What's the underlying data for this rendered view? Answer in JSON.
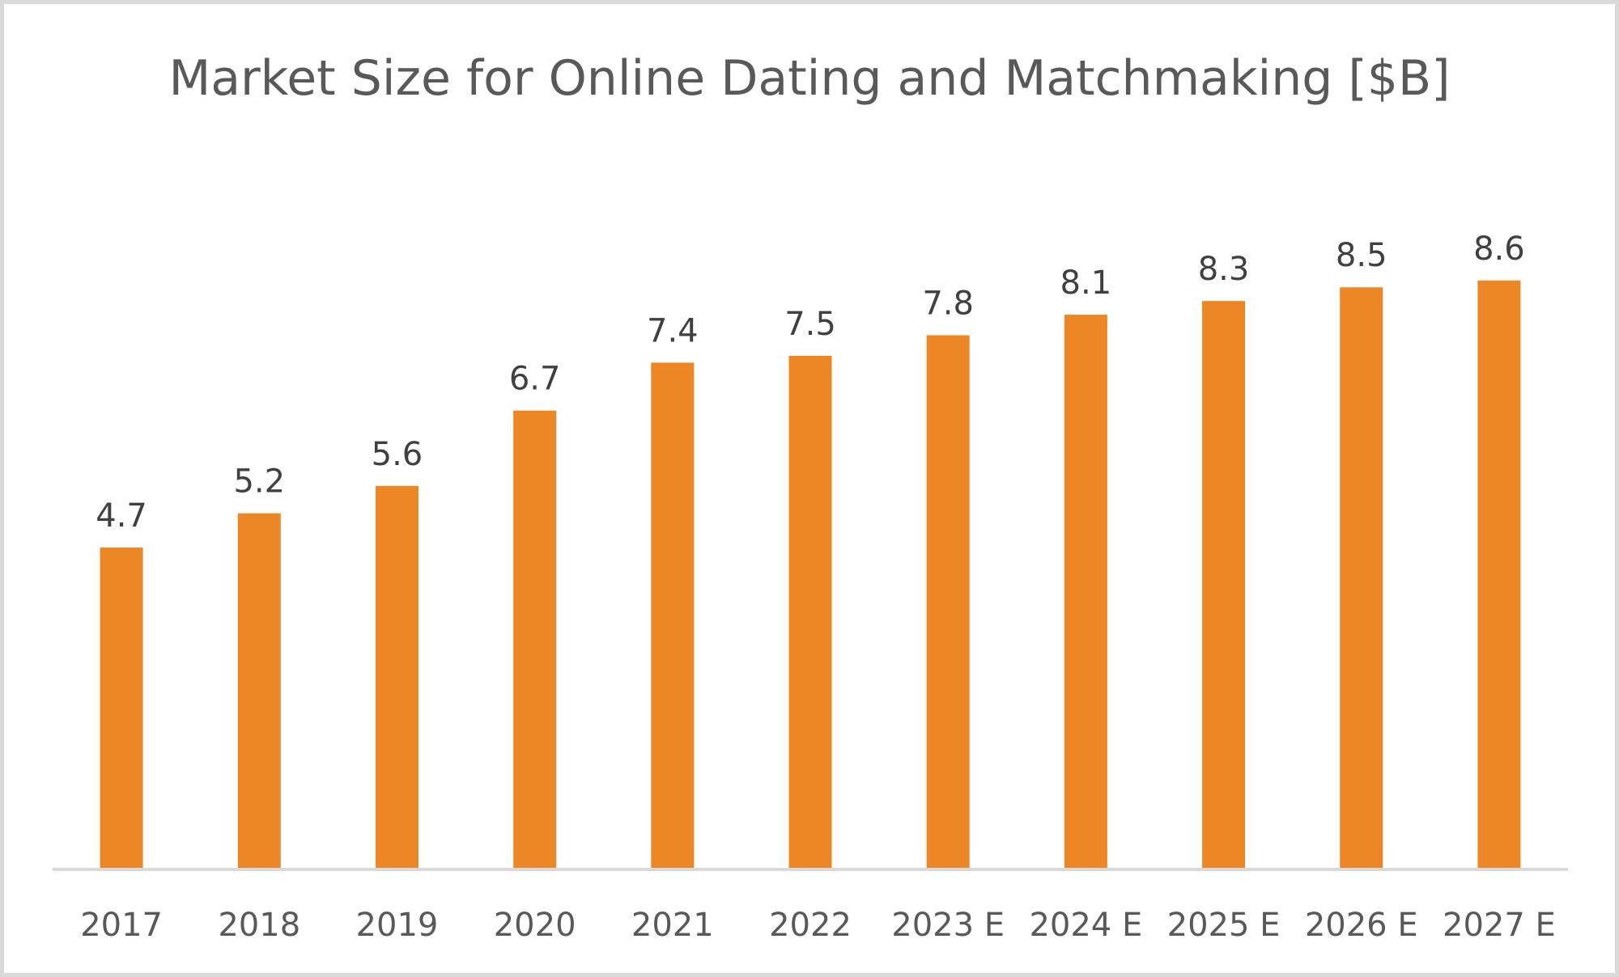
{
  "chart_data": {
    "type": "bar",
    "title": "Market Size for Online Dating and Matchmaking [$B]",
    "xlabel": "",
    "ylabel": "",
    "categories": [
      "2017",
      "2018",
      "2019",
      "2020",
      "2021",
      "2022",
      "2023 E",
      "2024 E",
      "2025 E",
      "2026 E",
      "2027 E"
    ],
    "values": [
      4.7,
      5.2,
      5.6,
      6.7,
      7.4,
      7.5,
      7.8,
      8.1,
      8.3,
      8.5,
      8.6
    ],
    "ylim": [
      0,
      12.4
    ],
    "data_labels": [
      "4.7",
      "5.2",
      "5.6",
      "6.7",
      "7.4",
      "7.5",
      "7.8",
      "8.1",
      "8.3",
      "8.5",
      "8.6"
    ],
    "grid": false,
    "legend": "none",
    "colors": {
      "bar": "#ED8725",
      "axis": "#d9d9d9",
      "text": "#595959",
      "frame": "#d9d9d9"
    }
  }
}
